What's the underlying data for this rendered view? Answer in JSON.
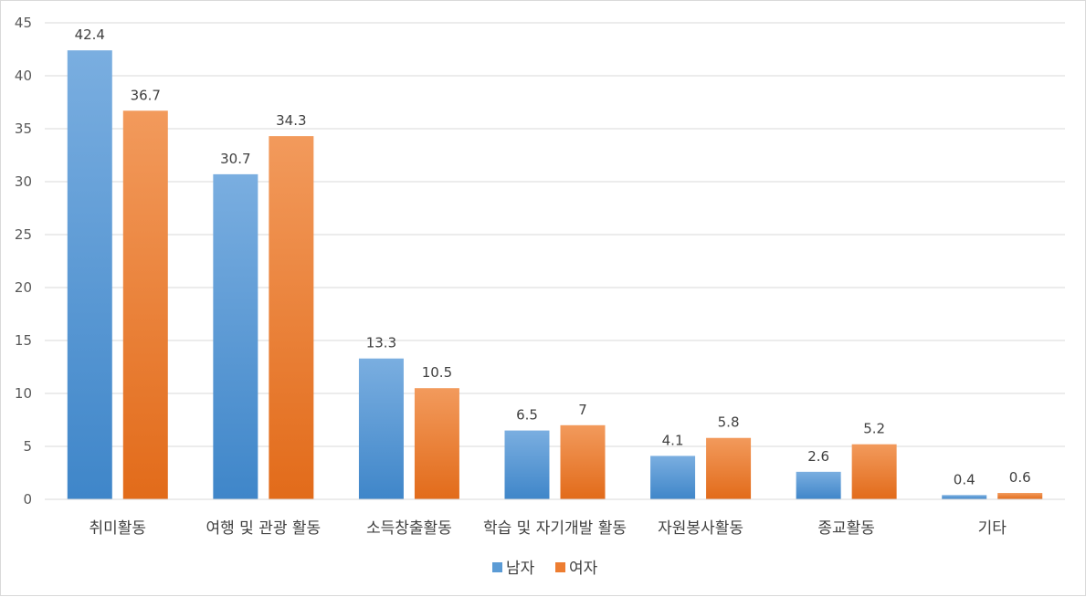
{
  "chart_data": {
    "type": "bar",
    "categories": [
      "취미활동",
      "여행 및 관광 활동",
      "소득창출활동",
      "학습 및 자기개발 활동",
      "자원봉사활동",
      "종교활동",
      "기타"
    ],
    "series": [
      {
        "name": "남자",
        "values": [
          42.4,
          30.7,
          13.3,
          6.5,
          4.1,
          2.6,
          0.4
        ],
        "color": "#5b9bd5"
      },
      {
        "name": "여자",
        "values": [
          36.7,
          34.3,
          10.5,
          7,
          5.8,
          5.2,
          0.6
        ],
        "color": "#ed7d31"
      }
    ],
    "y_ticks": [
      "0",
      "5",
      "10",
      "15",
      "20",
      "25",
      "30",
      "35",
      "40",
      "45"
    ],
    "ylim": [
      0,
      45
    ],
    "grid": true,
    "legend": "bottom",
    "data_labels": true
  }
}
